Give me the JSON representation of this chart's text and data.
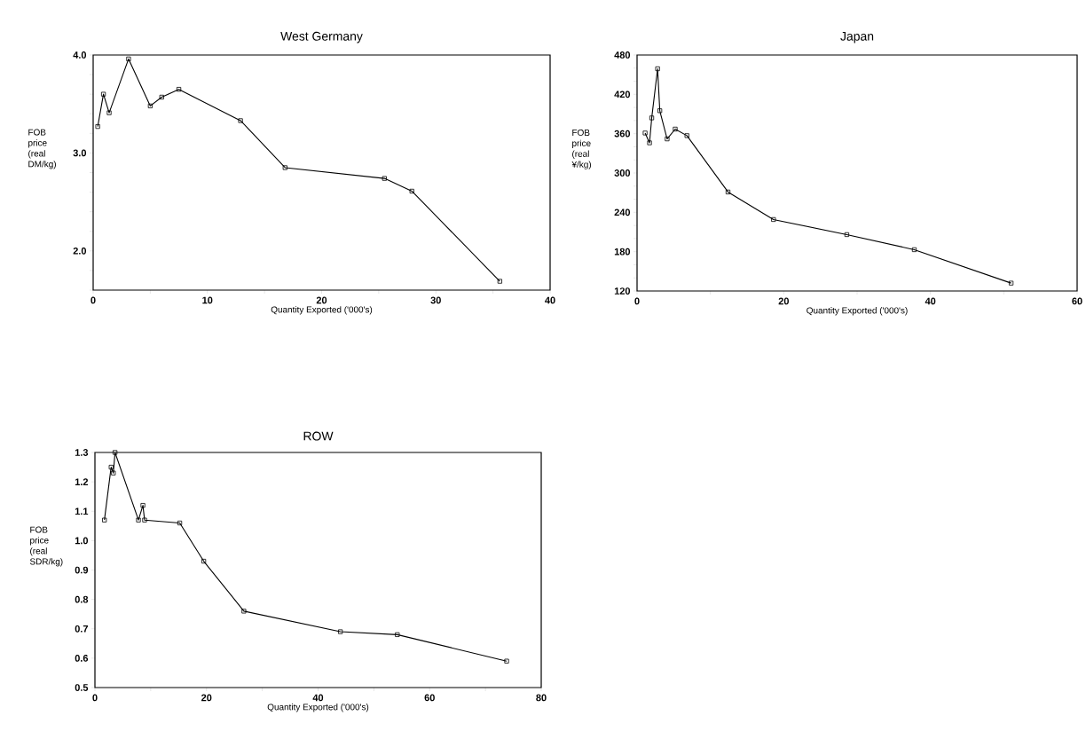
{
  "chart_data": [
    {
      "type": "line",
      "title": "West Germany",
      "xlabel": "Quantity Exported ('000's)",
      "ylabel": "FOB price (real DM/kg)",
      "color": "#000000",
      "marker": "square",
      "x": [
        0.4,
        0.9,
        1.4,
        3.1,
        5.0,
        6.0,
        7.5,
        12.9,
        16.8,
        25.5,
        27.9,
        35.6
      ],
      "values": [
        3.27,
        3.6,
        3.41,
        3.96,
        3.48,
        3.57,
        3.65,
        3.33,
        2.85,
        2.74,
        2.61,
        1.69
      ],
      "xlim": [
        0,
        40
      ],
      "ylim": [
        1.6,
        4.0
      ],
      "xticks": [
        0,
        {
          "value": 5,
          "label": null
        },
        10,
        {
          "value": 15,
          "label": null
        },
        20,
        {
          "value": 25,
          "label": null
        },
        30,
        {
          "value": 35,
          "label": null
        },
        40
      ],
      "yticks": [
        {
          "value": 1.6,
          "label": null
        },
        {
          "value": 1.8,
          "label": null
        },
        {
          "value": 2.0,
          "label": "2.0"
        },
        {
          "value": 2.2,
          "label": null
        },
        {
          "value": 2.4,
          "label": null
        },
        {
          "value": 2.6,
          "label": null
        },
        {
          "value": 2.8,
          "label": null
        },
        {
          "value": 3.0,
          "label": "3.0"
        },
        {
          "value": 3.2,
          "label": null
        },
        {
          "value": 3.4,
          "label": null
        },
        {
          "value": 3.6,
          "label": null
        },
        {
          "value": 3.8,
          "label": null
        },
        {
          "value": 4.0,
          "label": "4.0"
        }
      ]
    },
    {
      "type": "line",
      "title": "Japan",
      "xlabel": "Quantity Exported ('000's)",
      "ylabel": "FOB price (real ¥/kg)",
      "color": "#000000",
      "marker": "square",
      "x": [
        1.1,
        1.7,
        2.0,
        2.8,
        3.1,
        4.1,
        5.2,
        6.8,
        12.4,
        18.6,
        28.6,
        37.8,
        51.0
      ],
      "values": [
        361,
        346,
        384,
        459,
        395,
        352,
        367,
        357,
        271,
        229,
        206,
        183,
        132
      ],
      "xlim": [
        0,
        60
      ],
      "ylim": [
        120,
        480
      ],
      "xticks": [
        0,
        {
          "value": 10,
          "label": null
        },
        20,
        {
          "value": 30,
          "label": null
        },
        40,
        {
          "value": 50,
          "label": null
        },
        60
      ],
      "yticks": [
        120,
        {
          "value": 140,
          "label": null
        },
        {
          "value": 160,
          "label": null
        },
        180,
        {
          "value": 200,
          "label": null
        },
        {
          "value": 220,
          "label": null
        },
        240,
        {
          "value": 260,
          "label": null
        },
        {
          "value": 280,
          "label": null
        },
        300,
        {
          "value": 320,
          "label": null
        },
        {
          "value": 340,
          "label": null
        },
        360,
        {
          "value": 380,
          "label": null
        },
        {
          "value": 400,
          "label": null
        },
        420,
        {
          "value": 440,
          "label": null
        },
        {
          "value": 460,
          "label": null
        },
        480
      ]
    },
    {
      "type": "line",
      "title": "ROW",
      "xlabel": "Quantity Exported ('000's)",
      "ylabel": "FOB price (real SDR/kg)",
      "color": "#000000",
      "marker": "square",
      "x": [
        1.7,
        2.9,
        3.3,
        3.6,
        7.8,
        8.6,
        8.9,
        15.2,
        19.5,
        26.7,
        44.0,
        54.2,
        73.8
      ],
      "values": [
        1.07,
        1.25,
        1.23,
        1.3,
        1.07,
        1.12,
        1.07,
        1.06,
        0.93,
        0.76,
        0.69,
        0.68,
        0.59
      ],
      "xlim": [
        0,
        80
      ],
      "ylim": [
        0.5,
        1.3
      ],
      "xticks": [
        0,
        {
          "value": 10,
          "label": null
        },
        20,
        {
          "value": 30,
          "label": null
        },
        40,
        {
          "value": 50,
          "label": null
        },
        60,
        {
          "value": 70,
          "label": null
        },
        80
      ],
      "yticks": [
        0.5,
        0.6,
        0.7,
        0.8,
        0.9,
        {
          "value": 1.0,
          "label": "1.0"
        },
        1.1,
        1.2,
        1.3
      ]
    }
  ]
}
